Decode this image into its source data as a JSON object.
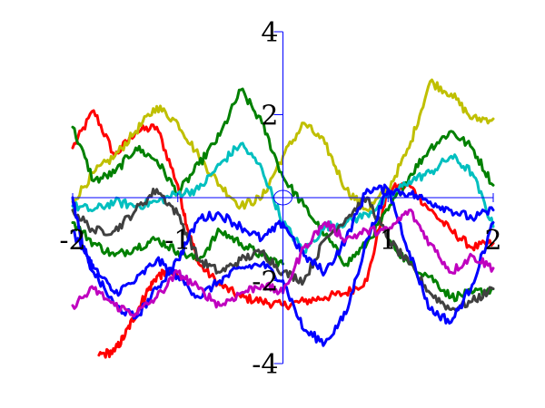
{
  "chart_data": {
    "type": "line",
    "title": "",
    "xlabel": "",
    "ylabel": "",
    "xlim": [
      -2,
      2
    ],
    "ylim": [
      -4,
      4
    ],
    "axis_color": "#0000ff",
    "x_tick_labels": [
      {
        "value": -2,
        "text": "-2"
      },
      {
        "value": -1,
        "text": "-1"
      },
      {
        "value": 1,
        "text": "1"
      },
      {
        "value": 2,
        "text": "2"
      }
    ],
    "y_tick_labels": [
      {
        "value": 4,
        "text": "4"
      },
      {
        "value": 2,
        "text": "2"
      },
      {
        "value": -2,
        "text": "-2"
      },
      {
        "value": -4,
        "text": "-4"
      }
    ],
    "series": [
      {
        "color": "#ff0000",
        "x": [
          -2.0,
          -1.8,
          -1.6,
          -1.4,
          -1.2,
          -1.0,
          -0.9,
          -0.8,
          -0.6,
          -0.4,
          -0.2,
          0.0,
          0.2,
          0.4,
          0.6,
          0.8,
          1.0,
          1.2,
          1.4,
          1.6,
          1.8,
          2.0
        ],
        "y": [
          1.2,
          2.1,
          1.0,
          1.6,
          1.7,
          0.3,
          -0.8,
          -1.6,
          -2.1,
          -2.4,
          -2.5,
          -2.6,
          -2.5,
          -2.4,
          -2.3,
          -2.0,
          0.2,
          0.3,
          -0.3,
          -0.8,
          -1.2,
          -1.1
        ]
      },
      {
        "color": "#ff0000",
        "x": [
          -1.75,
          -1.6,
          -1.5,
          -1.4,
          -1.3,
          -1.2,
          -1.1,
          -1.0
        ],
        "y": [
          -3.8,
          -3.7,
          -3.3,
          -2.8,
          -2.3,
          -1.9,
          -1.8,
          -1.9
        ]
      },
      {
        "color": "#bfbf00",
        "x": [
          -2.0,
          -1.8,
          -1.6,
          -1.4,
          -1.2,
          -1.0,
          -0.8,
          -0.6,
          -0.4,
          -0.2,
          0.0,
          0.2,
          0.4,
          0.6,
          0.8,
          1.0,
          1.2,
          1.4,
          1.6,
          1.8,
          2.0
        ],
        "y": [
          -0.1,
          0.6,
          1.0,
          1.6,
          2.2,
          1.8,
          1.0,
          0.3,
          -0.2,
          0.0,
          1.0,
          1.8,
          1.3,
          0.2,
          -0.3,
          0.2,
          1.2,
          2.8,
          2.5,
          1.9,
          1.9
        ]
      },
      {
        "color": "#008000",
        "x": [
          -2.0,
          -1.8,
          -1.6,
          -1.4,
          -1.2,
          -1.0,
          -0.8,
          -0.6,
          -0.4,
          -0.2,
          0.0,
          0.2,
          0.4,
          0.6,
          0.8,
          1.0,
          1.2,
          1.4,
          1.6,
          1.8,
          2.0
        ],
        "y": [
          1.7,
          0.4,
          0.6,
          1.2,
          0.9,
          0.1,
          0.8,
          1.5,
          2.6,
          1.8,
          0.5,
          -0.2,
          -0.9,
          -1.6,
          -1.1,
          -0.3,
          0.5,
          1.2,
          1.6,
          1.2,
          0.3
        ]
      },
      {
        "color": "#008000",
        "x": [
          -2.0,
          -1.8,
          -1.6,
          -1.4,
          -1.2,
          -1.0,
          -0.8,
          -0.6,
          -0.4,
          -0.2,
          0.0
        ],
        "y": [
          -0.6,
          -1.1,
          -1.4,
          -1.2,
          -1.0,
          -1.3,
          -1.5,
          -0.8,
          -1.1,
          -1.4,
          -1.6
        ]
      },
      {
        "color": "#008000",
        "x": [
          1.0,
          1.2,
          1.4,
          1.6,
          1.8,
          2.0
        ],
        "y": [
          -1.0,
          -1.6,
          -1.9,
          -2.4,
          -2.3,
          -2.2
        ]
      },
      {
        "color": "#00bfbf",
        "x": [
          -2.0,
          -1.8,
          -1.6,
          -1.4,
          -1.2,
          -1.0,
          -0.8,
          -0.6,
          -0.4,
          -0.2,
          0.0,
          0.2,
          0.4,
          0.6,
          0.8,
          1.0,
          1.2,
          1.4,
          1.6,
          1.8,
          2.0
        ],
        "y": [
          -0.2,
          -0.3,
          -0.1,
          -0.2,
          -0.1,
          0.1,
          0.2,
          0.8,
          1.3,
          0.7,
          -0.6,
          -1.3,
          -0.7,
          -0.6,
          -0.4,
          0.0,
          0.4,
          0.6,
          1.0,
          0.6,
          -0.7
        ]
      },
      {
        "color": "#404040",
        "x": [
          -2.0,
          -1.8,
          -1.6,
          -1.4,
          -1.2,
          -1.0,
          -0.8,
          -0.6,
          -0.4,
          -0.2,
          0.0,
          0.2,
          0.4,
          0.6,
          0.8,
          1.0,
          1.2,
          1.4,
          1.6,
          1.8,
          2.0
        ],
        "y": [
          -0.3,
          -0.8,
          -0.8,
          -0.3,
          0.2,
          -0.4,
          -1.5,
          -1.8,
          -1.5,
          -1.3,
          -1.8,
          -2.0,
          -1.0,
          -0.5,
          0.0,
          -1.0,
          -1.6,
          -2.3,
          -2.7,
          -2.5,
          -2.2
        ]
      },
      {
        "color": "#0000ff",
        "x": [
          -2.0,
          -1.9,
          -1.8,
          -1.6,
          -1.4,
          -1.2,
          -1.0,
          -0.8,
          -0.6,
          -0.4,
          -0.2,
          0.0,
          0.2,
          0.4,
          0.6,
          0.8,
          1.0,
          1.2,
          1.4,
          1.6,
          1.8,
          2.0
        ],
        "y": [
          0.0,
          -1.2,
          -1.7,
          -2.3,
          -2.0,
          -1.5,
          -1.9,
          -2.4,
          -2.0,
          -1.7,
          -1.6,
          -2.0,
          -3.2,
          -3.5,
          -2.8,
          -1.0,
          0.2,
          -1.3,
          -2.7,
          -3.0,
          -2.1,
          -0.6
        ]
      },
      {
        "color": "#0000ff",
        "x": [
          -2.0,
          -1.8,
          -1.6,
          -1.4,
          -1.2,
          -1.0,
          -0.8,
          -0.6,
          -0.4,
          -0.2,
          0.0,
          0.2,
          0.4,
          0.6,
          0.8,
          1.0
        ],
        "y": [
          -0.8,
          -1.8,
          -2.6,
          -2.9,
          -2.2,
          -1.5,
          -0.5,
          -0.4,
          -0.7,
          -1.0,
          -0.6,
          -1.4,
          -1.8,
          -1.0,
          0.2,
          0.2
        ]
      },
      {
        "color": "#0000ff",
        "x": [
          1.0,
          1.2,
          1.4,
          1.6,
          1.8,
          2.0
        ],
        "y": [
          0.2,
          0.1,
          -0.1,
          -0.3,
          -0.5,
          -0.3
        ]
      },
      {
        "color": "#bf00bf",
        "x": [
          -2.0,
          -1.8,
          -1.6,
          -1.4,
          -1.2,
          -1.0,
          -0.8,
          -0.6,
          -0.4,
          -0.2,
          0.0,
          0.2,
          0.4,
          0.6,
          0.8,
          1.0,
          1.2,
          1.4,
          1.6,
          1.8,
          2.0
        ],
        "y": [
          -2.6,
          -2.2,
          -2.6,
          -2.8,
          -2.4,
          -1.8,
          -2.2,
          -2.6,
          -2.3,
          -2.1,
          -2.3,
          -1.2,
          -0.6,
          -1.0,
          -0.8,
          -0.8,
          -0.3,
          -1.1,
          -1.8,
          -1.4,
          -1.7
        ]
      }
    ]
  }
}
